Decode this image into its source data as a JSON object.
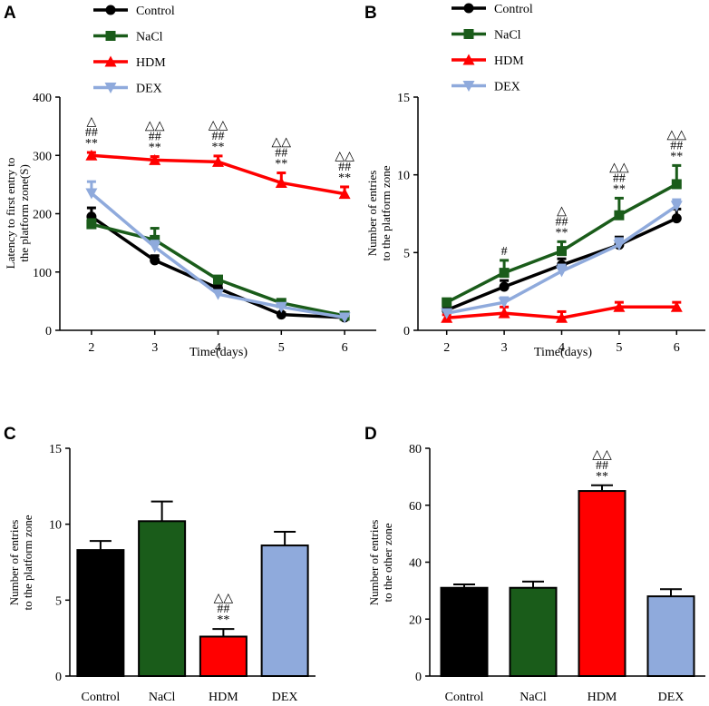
{
  "colors": {
    "Control": "#000000",
    "NaCl": "#1a5c1a",
    "HDM": "#ff0000",
    "DEX": "#8faadc",
    "sig_star": "#000000",
    "sig_hash": "#1a5c1a",
    "sig_tri": "#8faadc"
  },
  "chart_data": [
    {
      "panel": "A",
      "type": "line",
      "xlabel": "Time(days)",
      "ylabel_lines": [
        "Latency to first entry to",
        "the platform zone(S)"
      ],
      "x": [
        2,
        3,
        4,
        5,
        6
      ],
      "xlim": [
        1.5,
        6.5
      ],
      "ylim": [
        0,
        400
      ],
      "yticks": [
        0,
        100,
        200,
        300,
        400
      ],
      "legend": "top",
      "series": [
        {
          "name": "Control",
          "marker": "circle",
          "values": [
            195,
            120,
            72,
            27,
            22
          ],
          "errors": [
            15,
            8,
            5,
            3,
            3
          ]
        },
        {
          "name": "NaCl",
          "marker": "square",
          "values": [
            182,
            155,
            87,
            47,
            25
          ],
          "errors": [
            8,
            20,
            5,
            4,
            3
          ]
        },
        {
          "name": "HDM",
          "marker": "triangle",
          "values": [
            300,
            292,
            289,
            253,
            234
          ],
          "errors": [
            5,
            6,
            10,
            17,
            12
          ]
        },
        {
          "name": "DEX",
          "marker": "tri-down",
          "values": [
            235,
            143,
            62,
            40,
            22
          ],
          "errors": [
            20,
            10,
            5,
            4,
            3
          ]
        }
      ],
      "annotations": [
        {
          "x": 2,
          "marks": [
            "**",
            "##",
            "△"
          ]
        },
        {
          "x": 3,
          "marks": [
            "**",
            "##",
            "△△"
          ]
        },
        {
          "x": 4,
          "marks": [
            "**",
            "##",
            "△△"
          ]
        },
        {
          "x": 5,
          "marks": [
            "**",
            "##",
            "△△"
          ]
        },
        {
          "x": 6,
          "marks": [
            "**",
            "##",
            "△△"
          ]
        }
      ]
    },
    {
      "panel": "B",
      "type": "line",
      "xlabel": "Time(days)",
      "ylabel_lines": [
        "Number of entries",
        "to the platform zone"
      ],
      "x": [
        2,
        3,
        4,
        5,
        6
      ],
      "xlim": [
        1.5,
        6.5
      ],
      "ylim": [
        0,
        15
      ],
      "yticks": [
        0,
        5,
        10,
        15
      ],
      "legend": "top",
      "series": [
        {
          "name": "Control",
          "marker": "circle",
          "values": [
            1.3,
            2.8,
            4.2,
            5.5,
            7.2
          ],
          "errors": [
            0.2,
            0.4,
            0.4,
            0.5,
            0.6
          ]
        },
        {
          "name": "NaCl",
          "marker": "square",
          "values": [
            1.8,
            3.7,
            5.1,
            7.4,
            9.4
          ],
          "errors": [
            0.2,
            0.8,
            0.6,
            1.1,
            1.2
          ]
        },
        {
          "name": "HDM",
          "marker": "triangle",
          "values": [
            0.8,
            1.1,
            0.8,
            1.5,
            1.5
          ],
          "errors": [
            0.2,
            0.4,
            0.4,
            0.3,
            0.3
          ]
        },
        {
          "name": "DEX",
          "marker": "tri-down",
          "values": [
            1.1,
            1.8,
            3.8,
            5.5,
            8.0
          ],
          "errors": [
            0.2,
            0.3,
            0.4,
            0.4,
            0.4
          ]
        }
      ],
      "annotations": [
        {
          "x": 3,
          "marks": [
            "#"
          ]
        },
        {
          "x": 4,
          "marks": [
            "**",
            "##",
            "△"
          ]
        },
        {
          "x": 5,
          "marks": [
            "**",
            "##",
            "△△"
          ]
        },
        {
          "x": 6,
          "marks": [
            "**",
            "##",
            "△△"
          ]
        }
      ]
    },
    {
      "panel": "C",
      "type": "bar",
      "categories": [
        "Control",
        "NaCl",
        "HDM",
        "DEX"
      ],
      "values": [
        8.3,
        10.2,
        2.6,
        8.6
      ],
      "errors": [
        0.6,
        1.3,
        0.5,
        0.9
      ],
      "ylabel_lines": [
        "Number of entries",
        "to the platform zone"
      ],
      "ylim": [
        0,
        15
      ],
      "yticks": [
        0,
        5,
        10,
        15
      ],
      "annotations": [
        {
          "category": "HDM",
          "marks": [
            "**",
            "##",
            "△△"
          ]
        }
      ]
    },
    {
      "panel": "D",
      "type": "bar",
      "categories": [
        "Control",
        "NaCl",
        "HDM",
        "DEX"
      ],
      "values": [
        31,
        31,
        65,
        28
      ],
      "errors": [
        1.2,
        2.2,
        2.0,
        2.5
      ],
      "ylabel_lines": [
        "Number of entries",
        "to the other zone"
      ],
      "ylim": [
        0,
        80
      ],
      "yticks": [
        0,
        20,
        40,
        60,
        80
      ],
      "annotations": [
        {
          "category": "HDM",
          "marks": [
            "**",
            "##",
            "△△"
          ]
        }
      ]
    }
  ]
}
